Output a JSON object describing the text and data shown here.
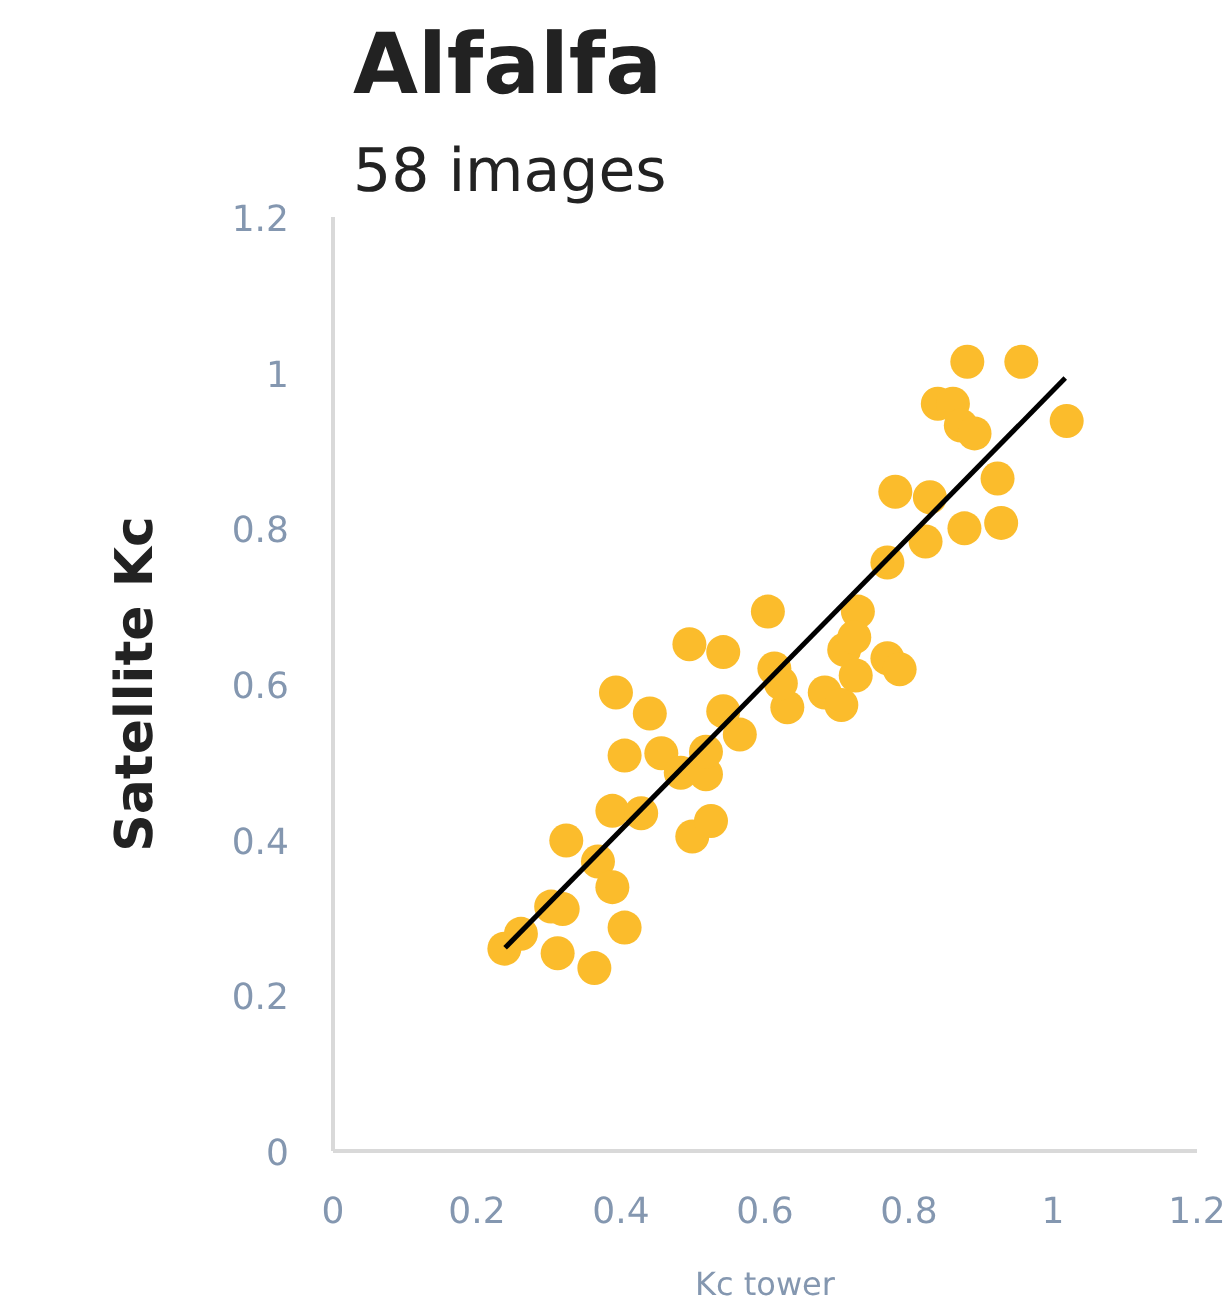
{
  "chart_data": {
    "type": "scatter",
    "title": "Alfalfa",
    "subtitle": "58 images",
    "xlabel": "Kc tower",
    "ylabel": "Satellite Kc",
    "xlim": [
      0,
      1.2
    ],
    "ylim": [
      0,
      1.2
    ],
    "xticks": [
      0,
      0.2,
      0.4,
      0.6,
      0.8,
      {
        "value": 1,
        "label": "1"
      },
      1.2
    ],
    "yticks": [
      0,
      0.2,
      0.4,
      0.6,
      0.8,
      {
        "value": 1,
        "label": "1"
      },
      1.2
    ],
    "grid": false,
    "series": [
      {
        "marker": "circle",
        "color": "#fbbc2c",
        "x": [
          0.238,
          0.261,
          0.312,
          0.303,
          0.319,
          0.363,
          0.324,
          0.368,
          0.388,
          0.405,
          0.388,
          0.393,
          0.405,
          0.428,
          0.44,
          0.456,
          0.483,
          0.495,
          0.542,
          0.499,
          0.525,
          0.518,
          0.518,
          0.542,
          0.565,
          0.604,
          0.613,
          0.631,
          0.622,
          0.683,
          0.706,
          0.71,
          0.729,
          0.724,
          0.726,
          0.77,
          0.787,
          0.77,
          0.781,
          0.823,
          0.829,
          0.877,
          0.928,
          0.923,
          0.84,
          0.861,
          0.872,
          0.891,
          0.881,
          0.956,
          1.019
        ],
        "values": [
          0.26,
          0.279,
          0.254,
          0.314,
          0.311,
          0.235,
          0.399,
          0.372,
          0.339,
          0.287,
          0.437,
          0.589,
          0.508,
          0.434,
          0.562,
          0.511,
          0.486,
          0.651,
          0.641,
          0.404,
          0.424,
          0.484,
          0.513,
          0.565,
          0.535,
          0.693,
          0.62,
          0.57,
          0.601,
          0.589,
          0.573,
          0.644,
          0.693,
          0.66,
          0.611,
          0.633,
          0.619,
          0.756,
          0.847,
          0.783,
          0.84,
          0.8,
          0.807,
          0.864,
          0.96,
          0.96,
          0.932,
          0.922,
          1.014,
          1.014,
          0.938
        ]
      },
      {
        "type": "line",
        "color": "#000000",
        "x": [
          0.239,
          1.017
        ],
        "values": [
          0.261,
          0.993
        ]
      }
    ]
  }
}
